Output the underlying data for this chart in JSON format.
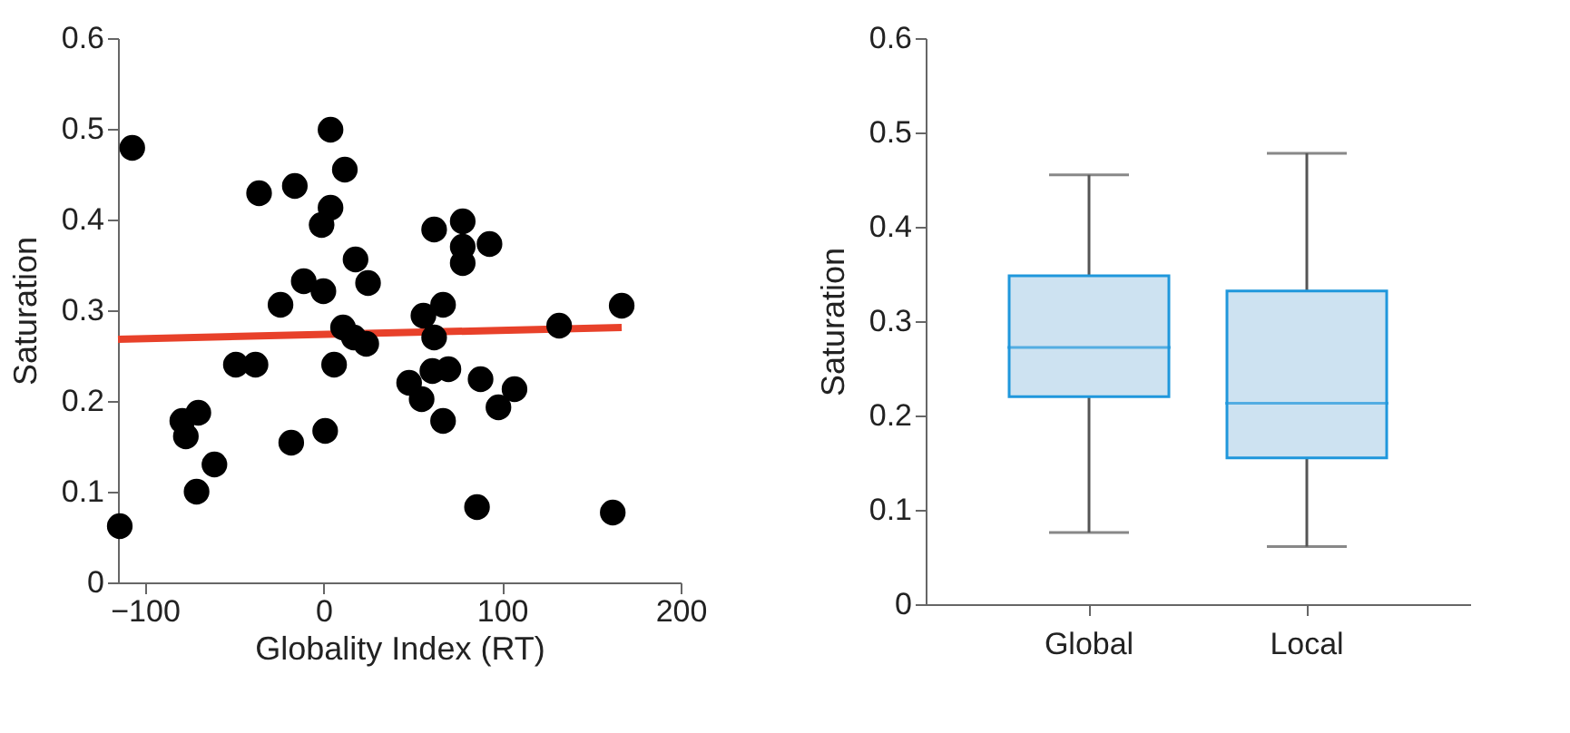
{
  "chart_data": [
    {
      "type": "scatter",
      "xlabel": "Globality Index (RT)",
      "ylabel": "Saturation",
      "xlim": [
        -115,
        200
      ],
      "xticks": [
        -100,
        0,
        100,
        200
      ],
      "ylim": [
        0,
        0.6
      ],
      "yticks": [
        0,
        0.1,
        0.2,
        0.3,
        0.4,
        0.5,
        0.6
      ],
      "grid": false,
      "series": [
        {
          "type": "line",
          "color": "#e8412a",
          "x": [
            -115,
            167
          ],
          "values": [
            0.268,
            0.281
          ]
        },
        {
          "type": "scatter",
          "marker": "circle",
          "color": "#000000",
          "x": [
            -114,
            -107,
            -79,
            -77,
            -70,
            -71,
            -61,
            -49,
            -38,
            -36,
            -18,
            -24,
            -16,
            -11,
            0,
            1,
            -1,
            4,
            4,
            6,
            12,
            11,
            18,
            25,
            17,
            24,
            48,
            55,
            56,
            62,
            62,
            67,
            61,
            70,
            67,
            78,
            78,
            78,
            93,
            88,
            86,
            98,
            107,
            132,
            167,
            162
          ],
          "values": [
            0.062,
            0.479,
            0.178,
            0.161,
            0.187,
            0.1,
            0.13,
            0.24,
            0.24,
            0.429,
            0.154,
            0.306,
            0.437,
            0.332,
            0.321,
            0.167,
            0.394,
            0.499,
            0.413,
            0.24,
            0.455,
            0.281,
            0.356,
            0.33,
            0.27,
            0.263,
            0.22,
            0.202,
            0.294,
            0.27,
            0.389,
            0.306,
            0.233,
            0.235,
            0.178,
            0.398,
            0.37,
            0.352,
            0.373,
            0.224,
            0.083,
            0.193,
            0.213,
            0.283,
            0.305,
            0.077
          ]
        }
      ]
    },
    {
      "type": "box",
      "ylabel": "Saturation",
      "categories": [
        "Global",
        "Local"
      ],
      "ylim": [
        0,
        0.6
      ],
      "yticks": [
        0,
        0.1,
        0.2,
        0.3,
        0.4,
        0.5,
        0.6
      ],
      "grid": false,
      "color": "#cde2f1",
      "boxes": [
        {
          "low": 0.076,
          "q1": 0.22,
          "median": 0.272,
          "q3": 0.348,
          "high": 0.455
        },
        {
          "low": 0.061,
          "q1": 0.155,
          "median": 0.213,
          "q3": 0.332,
          "high": 0.478
        }
      ]
    }
  ]
}
